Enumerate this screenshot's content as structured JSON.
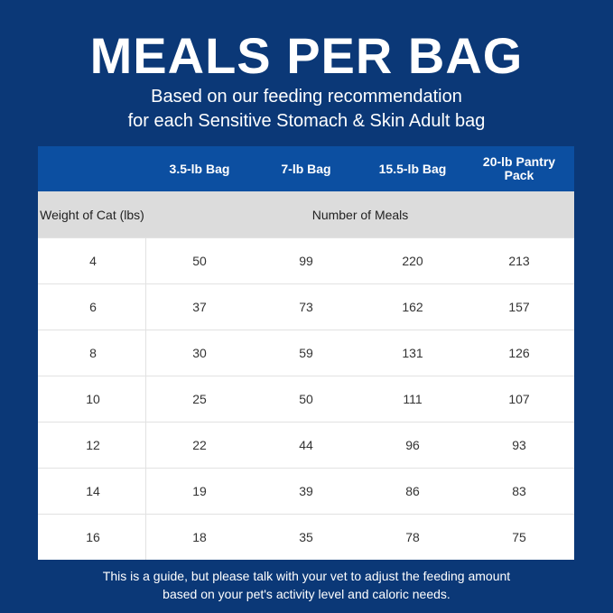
{
  "title": "MEALS PER BAG",
  "subtitle": [
    "Based on our feeding recommendation",
    "for each Sensitive Stomach & Skin Adult bag"
  ],
  "table": {
    "columns": [
      "",
      "3.5-lb Bag",
      "7-lb Bag",
      "15.5-lb Bag",
      "20-lb Pantry Pack"
    ],
    "row_header_label": "Weight of Cat (lbs)",
    "group_label": "Number of Meals",
    "rows": [
      [
        "4",
        "50",
        "99",
        "220",
        "213"
      ],
      [
        "6",
        "37",
        "73",
        "162",
        "157"
      ],
      [
        "8",
        "30",
        "59",
        "131",
        "126"
      ],
      [
        "10",
        "25",
        "50",
        "111",
        "107"
      ],
      [
        "12",
        "22",
        "44",
        "96",
        "93"
      ],
      [
        "14",
        "19",
        "39",
        "86",
        "83"
      ],
      [
        "16",
        "18",
        "35",
        "78",
        "75"
      ]
    ]
  },
  "footnote": [
    "This is a guide, but please talk with your vet to adjust the feeding amount",
    "based on your pet's activity level and caloric needs."
  ],
  "colors": {
    "background": "#0b3877",
    "header": "#0c4fa1",
    "subheader": "#dcdcdc"
  }
}
